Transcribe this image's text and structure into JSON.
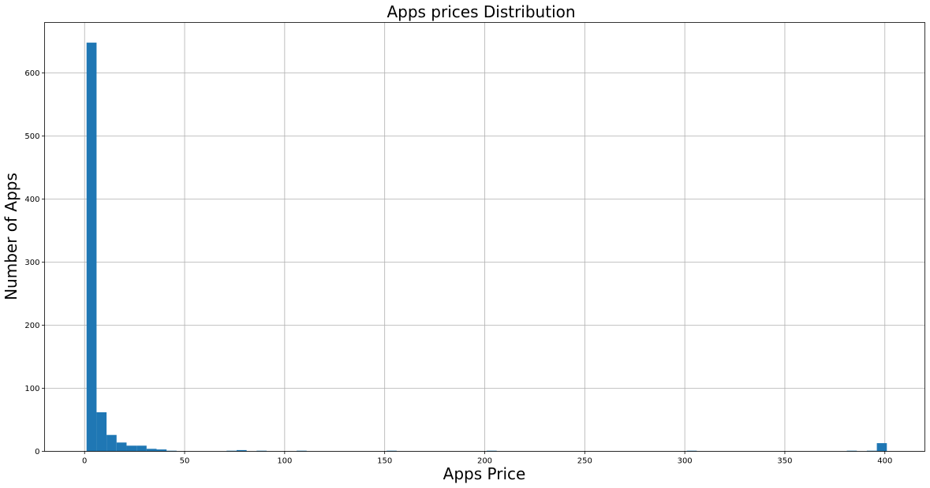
{
  "chart_data": {
    "type": "bar",
    "title": "Apps prices Distribution",
    "xlabel": "Apps Price",
    "ylabel": "Number of Apps",
    "bar_color": "#1f77b4",
    "grid": true,
    "xlim": [
      -20,
      420
    ],
    "ylim": [
      0,
      680
    ],
    "xticks": [
      0,
      50,
      100,
      150,
      200,
      250,
      300,
      350,
      400
    ],
    "yticks": [
      0,
      100,
      200,
      300,
      400,
      500,
      600
    ],
    "bin_width": 5,
    "bins": [
      {
        "x0": 0.99,
        "count": 648
      },
      {
        "x0": 5.99,
        "count": 62
      },
      {
        "x0": 10.99,
        "count": 26
      },
      {
        "x0": 15.99,
        "count": 14
      },
      {
        "x0": 20.99,
        "count": 9
      },
      {
        "x0": 25.99,
        "count": 9
      },
      {
        "x0": 30.99,
        "count": 4
      },
      {
        "x0": 35.99,
        "count": 3
      },
      {
        "x0": 40.99,
        "count": 1
      },
      {
        "x0": 70.99,
        "count": 1
      },
      {
        "x0": 75.99,
        "count": 2
      },
      {
        "x0": 85.99,
        "count": 1
      },
      {
        "x0": 105.99,
        "count": 1
      },
      {
        "x0": 150.99,
        "count": 1
      },
      {
        "x0": 200.99,
        "count": 1
      },
      {
        "x0": 300.99,
        "count": 1
      },
      {
        "x0": 380.99,
        "count": 1
      },
      {
        "x0": 390.99,
        "count": 1
      },
      {
        "x0": 395.99,
        "count": 13
      }
    ]
  }
}
